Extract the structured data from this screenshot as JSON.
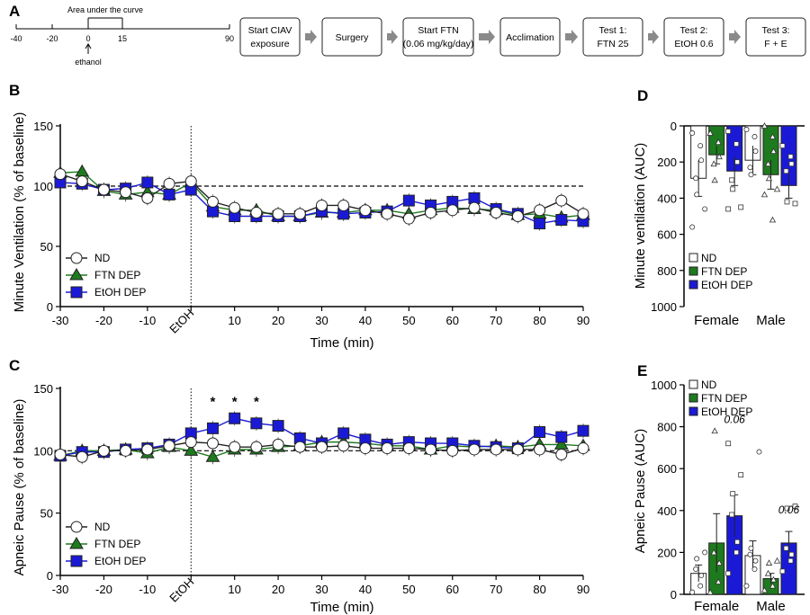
{
  "panel_letters": {
    "a": "A",
    "b": "B",
    "c": "C",
    "d": "D",
    "e": "E"
  },
  "timeline": {
    "ticks": [
      "-40",
      "-20",
      "0",
      "15",
      "90"
    ],
    "auc_label": "Area under the curve",
    "ethanol_label": "ethanol",
    "boxes": [
      {
        "line1": "Start CIAV",
        "line2": "exposure"
      },
      {
        "line1": "Surgery",
        "line2": ""
      },
      {
        "line1": "Start FTN",
        "line2": "(0.06 mg/kg/day)"
      },
      {
        "line1": "Acclimation",
        "line2": ""
      },
      {
        "line1": "Test 1:",
        "line2": "FTN 25"
      },
      {
        "line1": "Test 2:",
        "line2": "EtOH 0.6"
      },
      {
        "line1": "Test 3:",
        "line2": "F + E"
      }
    ]
  },
  "colors": {
    "nd": "#ffffff",
    "ftn": "#1e7a1e",
    "etoh": "#1a1ad6",
    "line_nd": "#222222"
  },
  "chart_data": [
    {
      "id": "B",
      "type": "line",
      "xlabel": "Time (min)",
      "ylabel": "Minute Ventilation (% of baseline)",
      "ylim": [
        0,
        150
      ],
      "y_ticks": [
        "0",
        "50",
        "100",
        "150"
      ],
      "x_ticks": [
        "-30",
        "-20",
        "-10",
        "EtOH",
        "10",
        "20",
        "30",
        "40",
        "50",
        "60",
        "70",
        "80",
        "90"
      ],
      "reference_line": 100,
      "injection_label": "EtOH",
      "legend": [
        "ND",
        "FTN DEP",
        "EtOH DEP"
      ],
      "x": [
        -30,
        -25,
        -20,
        -15,
        -10,
        -5,
        0,
        5,
        10,
        15,
        20,
        25,
        30,
        35,
        40,
        45,
        50,
        55,
        60,
        65,
        70,
        75,
        80,
        85,
        90
      ],
      "series": [
        {
          "name": "ND",
          "marker": "circle",
          "values": [
            110,
            104,
            97,
            95,
            90,
            102,
            104,
            87,
            82,
            78,
            77,
            77,
            84,
            84,
            80,
            77,
            73,
            78,
            80,
            82,
            78,
            75,
            80,
            88,
            77
          ]
        },
        {
          "name": "FTN DEP",
          "marker": "triangle",
          "values": [
            111,
            112,
            96,
            93,
            95,
            93,
            103,
            83,
            80,
            80,
            75,
            75,
            78,
            78,
            80,
            80,
            77,
            80,
            82,
            81,
            80,
            76,
            77,
            74,
            76
          ]
        },
        {
          "name": "EtOH DEP",
          "marker": "square",
          "values": [
            103,
            102,
            97,
            98,
            103,
            93,
            97,
            79,
            75,
            75,
            75,
            75,
            79,
            77,
            78,
            79,
            88,
            84,
            87,
            90,
            81,
            77,
            69,
            72,
            71
          ]
        }
      ]
    },
    {
      "id": "C",
      "type": "line",
      "xlabel": "Time (min)",
      "ylabel": "Apneic Pause (% of baseline)",
      "ylim": [
        0,
        150
      ],
      "y_ticks": [
        "0",
        "50",
        "100",
        "150"
      ],
      "x_ticks": [
        "-30",
        "-20",
        "-10",
        "EtOH",
        "10",
        "20",
        "30",
        "40",
        "50",
        "60",
        "70",
        "80",
        "90"
      ],
      "reference_line": 100,
      "injection_label": "EtOH",
      "legend": [
        "ND",
        "FTN DEP",
        "EtOH DEP"
      ],
      "significance": [
        {
          "x": 5,
          "label": "*"
        },
        {
          "x": 10,
          "label": "*"
        },
        {
          "x": 15,
          "label": "*"
        }
      ],
      "x": [
        -30,
        -25,
        -20,
        -15,
        -10,
        -5,
        0,
        5,
        10,
        15,
        20,
        25,
        30,
        35,
        40,
        45,
        50,
        55,
        60,
        65,
        70,
        75,
        80,
        85,
        90
      ],
      "series": [
        {
          "name": "ND",
          "marker": "circle",
          "values": [
            97,
            95,
            100,
            100,
            101,
            104,
            107,
            106,
            103,
            103,
            105,
            103,
            103,
            104,
            102,
            102,
            102,
            101,
            100,
            101,
            101,
            101,
            101,
            97,
            102
          ]
        },
        {
          "name": "FTN DEP",
          "marker": "triangle",
          "values": [
            96,
            100,
            100,
            101,
            98,
            103,
            100,
            95,
            101,
            101,
            103,
            104,
            107,
            107,
            106,
            104,
            104,
            101,
            104,
            103,
            104,
            103,
            105,
            105,
            104
          ]
        },
        {
          "name": "EtOH DEP",
          "marker": "square",
          "values": [
            96,
            99,
            99,
            101,
            102,
            105,
            114,
            118,
            126,
            122,
            120,
            110,
            106,
            114,
            109,
            105,
            107,
            106,
            106,
            104,
            103,
            102,
            115,
            111,
            116
          ]
        }
      ]
    },
    {
      "id": "D",
      "type": "bar",
      "ylabel": "Minute ventilation (AUC)",
      "ylim": [
        0,
        1000
      ],
      "inverted": true,
      "y_ticks": [
        "0",
        "200",
        "400",
        "600",
        "800",
        "1000"
      ],
      "categories": [
        "Female",
        "Male"
      ],
      "legend": [
        "ND",
        "FTN DEP",
        "EtOH DEP"
      ],
      "series": [
        {
          "name": "ND",
          "values": [
            290,
            190
          ],
          "errors": [
            100,
            80
          ]
        },
        {
          "name": "FTN DEP",
          "values": [
            160,
            270
          ],
          "errors": [
            50,
            80
          ]
        },
        {
          "name": "EtOH DEP",
          "values": [
            250,
            330
          ],
          "errors": [
            80,
            70
          ]
        }
      ],
      "points": [
        [
          [
            40,
            110,
            190,
            290,
            380,
            460,
            560
          ],
          [
            20,
            60,
            140,
            230,
            270
          ]
        ],
        [
          [
            40,
            90,
            170,
            210,
            300
          ],
          [
            0,
            60,
            140,
            210,
            290,
            350,
            380,
            520
          ]
        ],
        [
          [
            30,
            100,
            200,
            300,
            350,
            450,
            460
          ],
          [
            110,
            170,
            210,
            250,
            420,
            430
          ]
        ]
      ]
    },
    {
      "id": "E",
      "type": "bar",
      "ylabel": "Apneic Pause (AUC)",
      "ylim": [
        0,
        1000
      ],
      "y_ticks": [
        "0",
        "200",
        "400",
        "600",
        "800",
        "1000"
      ],
      "categories": [
        "Female",
        "Male"
      ],
      "legend": [
        "ND",
        "FTN DEP",
        "EtOH DEP"
      ],
      "annotations": [
        {
          "category": "Female",
          "label": "0.06"
        },
        {
          "category": "Male",
          "label": "0.06"
        }
      ],
      "series": [
        {
          "name": "ND",
          "values": [
            100,
            185
          ],
          "errors": [
            40,
            70
          ]
        },
        {
          "name": "FTN DEP",
          "values": [
            245,
            75
          ],
          "errors": [
            140,
            25
          ]
        },
        {
          "name": "EtOH DEP",
          "values": [
            375,
            245
          ],
          "errors": [
            100,
            55
          ]
        }
      ],
      "points": [
        [
          [
            10,
            40,
            90,
            120,
            170,
            200
          ],
          [
            40,
            120,
            160,
            190,
            220,
            680
          ]
        ],
        [
          [
            10,
            60,
            150,
            200,
            780
          ],
          [
            20,
            40,
            70,
            100,
            150,
            160
          ]
        ],
        [
          [
            100,
            200,
            250,
            380,
            480,
            570,
            720
          ],
          [
            110,
            160,
            190,
            220,
            410,
            420
          ]
        ]
      ]
    }
  ]
}
